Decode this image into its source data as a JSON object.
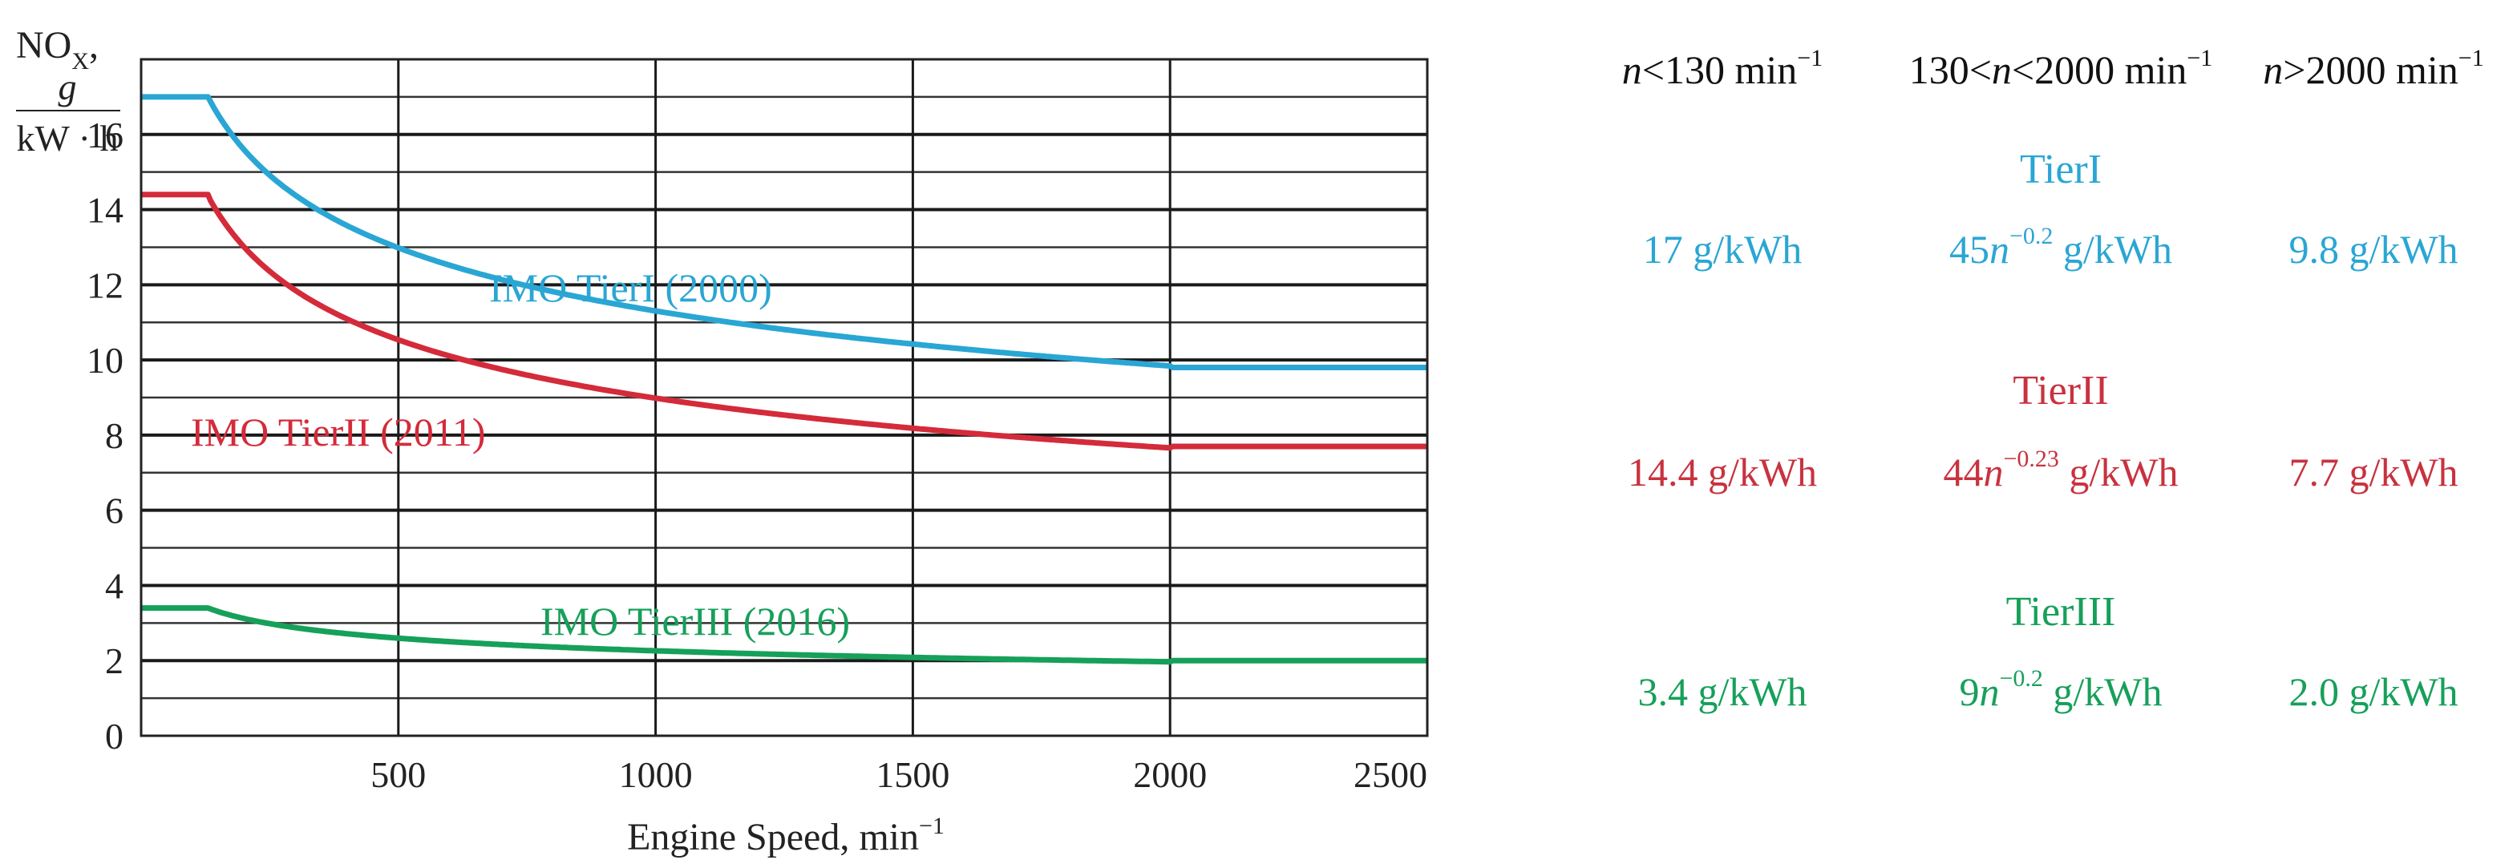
{
  "chart_data": {
    "type": "line",
    "title": "",
    "xlabel": "Engine Speed, min",
    "xlabel_exponent": "−1",
    "ylabel": {
      "main": "NO",
      "subscript": "X",
      "suffix": ",",
      "unit_numerator": "g",
      "unit_denominator": "kW · h"
    },
    "xlim": [
      0,
      2500
    ],
    "ylim": [
      0,
      18
    ],
    "x_ticks": [
      500,
      1000,
      1500,
      2000,
      2500
    ],
    "y_ticks": [
      0,
      2,
      4,
      6,
      8,
      10,
      12,
      14,
      16
    ],
    "grid": true,
    "series": [
      {
        "name": "IMO TierI (2000)",
        "color": "#2aa6d4",
        "limit_low": 17,
        "coefficient": 45,
        "exponent": -0.2,
        "limit_high": 9.8,
        "n_low": 130,
        "n_high": 2000
      },
      {
        "name": "IMO TierII (2011)",
        "color": "#d42b3a",
        "limit_low": 14.4,
        "coefficient": 44,
        "exponent": -0.23,
        "limit_high": 7.7,
        "n_low": 130,
        "n_high": 2000
      },
      {
        "name": "IMO TierIII (2016)",
        "color": "#16a05a",
        "limit_low": 3.4,
        "coefficient": 9,
        "exponent": -0.2,
        "limit_high": 2.0,
        "n_low": 130,
        "n_high": 2000
      }
    ]
  },
  "table": {
    "headers": [
      {
        "pre_italic": "n",
        "text": "<130 min",
        "exp": "−1"
      },
      {
        "pre_text": "130<",
        "pre_italic": "n",
        "text": "<2000 min",
        "exp": "−1"
      },
      {
        "pre_italic": "n",
        "text": ">2000 min",
        "exp": "−1"
      }
    ],
    "tiers": [
      {
        "title": "TierI",
        "color": "#2aa6d4",
        "low": "17 g/kWh",
        "mid_coef": "45",
        "mid_var": "n",
        "mid_exp": "−0.2",
        "mid_unit": " g/kWh",
        "high": "9.8 g/kWh"
      },
      {
        "title": "TierII",
        "color": "#c8323f",
        "low": "14.4 g/kWh",
        "mid_coef": "44",
        "mid_var": "n",
        "mid_exp": "−0.23",
        "mid_unit": " g/kWh",
        "high": "7.7 g/kWh"
      },
      {
        "title": "TierIII",
        "color": "#16a05a",
        "low": "3.4 g/kWh",
        "mid_coef": "9",
        "mid_var": "n",
        "mid_exp": "−0.2",
        "mid_unit": " g/kWh",
        "high": "2.0 g/kWh"
      }
    ]
  }
}
